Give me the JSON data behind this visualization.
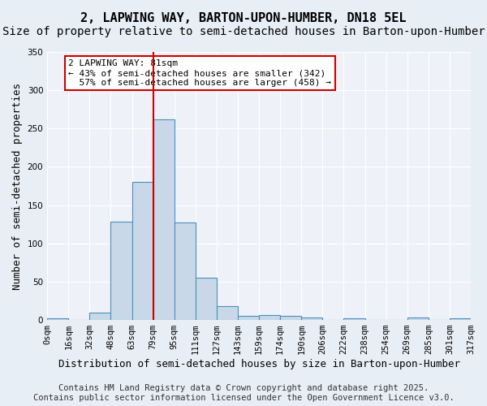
{
  "title": "2, LAPWING WAY, BARTON-UPON-HUMBER, DN18 5EL",
  "subtitle": "Size of property relative to semi-detached houses in Barton-upon-Humber",
  "xlabel": "Distribution of semi-detached houses by size in Barton-upon-Humber",
  "ylabel": "Number of semi-detached properties",
  "footnote1": "Contains HM Land Registry data © Crown copyright and database right 2025.",
  "footnote2": "Contains public sector information licensed under the Open Government Licence v3.0.",
  "bin_labels": [
    "0sqm",
    "16sqm",
    "32sqm",
    "48sqm",
    "63sqm",
    "79sqm",
    "95sqm",
    "111sqm",
    "127sqm",
    "143sqm",
    "159sqm",
    "174sqm",
    "190sqm",
    "206sqm",
    "222sqm",
    "238sqm",
    "254sqm",
    "269sqm",
    "285sqm",
    "301sqm",
    "317sqm"
  ],
  "bar_values": [
    2,
    0,
    10,
    128,
    180,
    262,
    127,
    55,
    18,
    5,
    6,
    5,
    3,
    0,
    2,
    0,
    0,
    3,
    0,
    2
  ],
  "bar_color": "#c8d8e8",
  "bar_edge_color": "#4a90c0",
  "property_label": "2 LAPWING WAY: 81sqm",
  "pct_smaller": 43,
  "pct_larger": 57,
  "count_smaller": 342,
  "count_larger": 458,
  "redline_bin": 5,
  "annotation_box_color": "#ffffff",
  "annotation_box_edge": "#cc0000",
  "redline_color": "#cc0000",
  "ylim": [
    0,
    350
  ],
  "bg_color": "#e8eef5",
  "plot_bg_color": "#eef2f8",
  "grid_color": "#ffffff",
  "title_fontsize": 11,
  "subtitle_fontsize": 10,
  "axis_label_fontsize": 9,
  "tick_fontsize": 7.5,
  "annotation_fontsize": 8,
  "footnote_fontsize": 7.5
}
